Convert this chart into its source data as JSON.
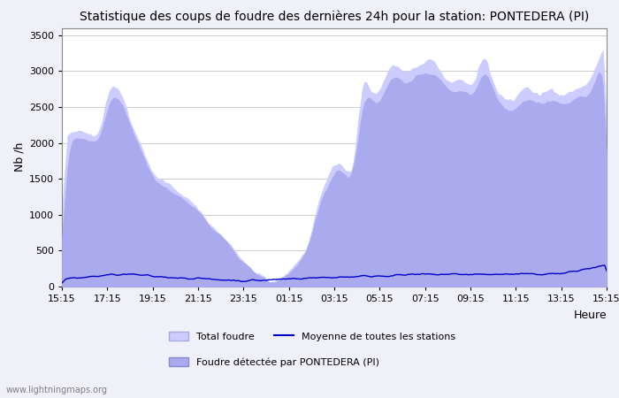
{
  "title": "Statistique des coups de foudre des dernières 24h pour la station: PONTEDERA (PI)",
  "xlabel": "Heure",
  "ylabel": "Nb /h",
  "yticks": [
    0,
    500,
    1000,
    1500,
    2000,
    2500,
    3000,
    3500
  ],
  "ylim": [
    0,
    3600
  ],
  "xtick_labels": [
    "15:15",
    "17:15",
    "19:15",
    "21:15",
    "23:15",
    "01:15",
    "03:15",
    "05:15",
    "07:15",
    "09:15",
    "11:15",
    "13:15",
    "15:15"
  ],
  "bg_color": "#f0f0f8",
  "plot_bg_color": "#ffffff",
  "grid_color": "#cccccc",
  "total_foudre_color": "#ccccff",
  "total_foudre_edge": "#aaaadd",
  "local_foudre_color": "#aaaaee",
  "local_foudre_edge": "#8888cc",
  "mean_line_color": "#0000cc",
  "watermark": "www.lightningmaps.org",
  "legend_total": "Total foudre",
  "legend_mean": "Moyenne de toutes les stations",
  "legend_local": "Foudre détectée par PONTEDERA (PI)"
}
